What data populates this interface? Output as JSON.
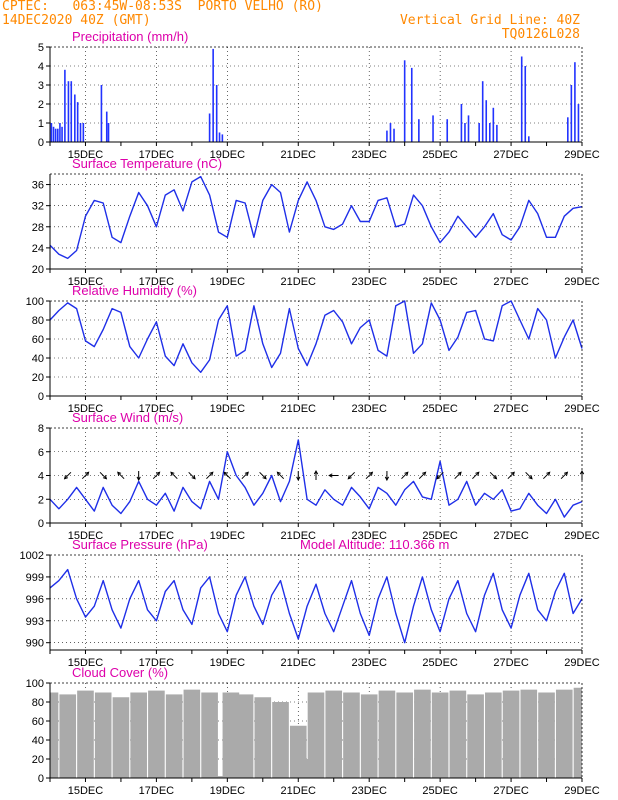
{
  "header": {
    "line1_left": "CPTEC:   063:45W-08:53S  PORTO VELHO (RO)",
    "line2_left": "14DEC2020 40Z (GMT)",
    "line1_right": "Vertical Grid Line: 40Z",
    "line2_right": "TQ0126L028",
    "color": "#ff8800"
  },
  "colors": {
    "title": "#dd00aa",
    "line": "#1f2fe8",
    "bar": "#2233ff",
    "cloud": "#aaaaaa",
    "axis": "#000000",
    "arrow": "#000000"
  },
  "x_labels": [
    "15DEC",
    "17DEC",
    "19DEC",
    "21DEC",
    "23DEC",
    "25DEC",
    "27DEC",
    "29DEC"
  ],
  "chart_data": [
    {
      "id": "precip",
      "type": "bar",
      "title": "Precipitation (mm/h)",
      "ylim": [
        0,
        5
      ],
      "yticks": [
        "0",
        "1",
        "2",
        "3",
        "4",
        "5"
      ],
      "xlim": [
        0,
        15
      ],
      "x_tick_days": [
        1,
        3,
        5,
        7,
        9,
        11,
        13,
        15
      ],
      "x_units": "days since 14DEC2020",
      "series": [
        {
          "x": [
            0.04,
            0.1,
            0.16,
            0.22,
            0.28,
            0.34,
            0.42,
            0.52,
            0.6,
            0.7,
            0.78,
            0.86,
            0.94,
            1.45,
            1.6,
            1.65,
            4.5,
            4.6,
            4.7,
            4.78,
            4.86,
            9.5,
            9.6,
            9.7,
            10.0,
            10.2,
            10.4,
            10.8,
            11.2,
            11.6,
            11.7,
            11.8,
            12.1,
            12.2,
            12.3,
            12.4,
            12.5,
            12.6,
            13.3,
            13.4,
            13.5,
            14.6,
            14.7,
            14.8,
            14.9
          ],
          "values": [
            1.0,
            0.8,
            0.7,
            0.7,
            1.0,
            0.8,
            3.8,
            3.2,
            3.2,
            2.5,
            2.1,
            1.0,
            1.0,
            3.0,
            1.6,
            1.0,
            1.5,
            4.9,
            3.0,
            0.5,
            0.4,
            0.6,
            1.0,
            0.7,
            4.3,
            3.9,
            1.2,
            1.4,
            1.2,
            2.0,
            1.0,
            1.4,
            1.0,
            3.2,
            2.2,
            1.0,
            1.8,
            0.9,
            4.5,
            4.0,
            0.3,
            1.3,
            3.0,
            4.2,
            2.0
          ]
        }
      ]
    },
    {
      "id": "temp",
      "type": "line",
      "title": "Surface Temperature (nC)",
      "ylim": [
        20,
        38
      ],
      "yticks": [
        "20",
        "24",
        "28",
        "32",
        "36"
      ],
      "xlim": [
        0,
        15
      ],
      "x_tick_days": [
        1,
        3,
        5,
        7,
        9,
        11,
        13,
        15
      ],
      "series": [
        {
          "x": [
            0,
            0.25,
            0.5,
            0.75,
            1,
            1.25,
            1.5,
            1.75,
            2,
            2.25,
            2.5,
            2.75,
            3,
            3.25,
            3.5,
            3.75,
            4,
            4.25,
            4.5,
            4.75,
            5,
            5.25,
            5.5,
            5.75,
            6,
            6.25,
            6.5,
            6.75,
            7,
            7.25,
            7.5,
            7.75,
            8,
            8.25,
            8.5,
            8.75,
            9,
            9.25,
            9.5,
            9.75,
            10,
            10.25,
            10.5,
            10.75,
            11,
            11.25,
            11.5,
            11.75,
            12,
            12.25,
            12.5,
            12.75,
            13,
            13.25,
            13.5,
            13.75,
            14,
            14.25,
            14.5,
            14.75,
            15
          ],
          "values": [
            24.5,
            22.8,
            22.0,
            23.5,
            30.0,
            33.0,
            32.5,
            26.0,
            25.0,
            30.0,
            34.5,
            32.0,
            28.0,
            34.0,
            35.0,
            31.0,
            36.5,
            37.5,
            34.0,
            27.0,
            26.0,
            33.0,
            32.5,
            26.0,
            33.0,
            36.0,
            34.5,
            27.0,
            33.0,
            36.5,
            33.0,
            28.0,
            27.5,
            28.5,
            32.0,
            29.0,
            29.0,
            33.0,
            33.5,
            28.0,
            28.5,
            34.0,
            32.0,
            28.0,
            25.0,
            27.0,
            30.0,
            28.0,
            26.0,
            28.0,
            30.5,
            26.5,
            25.5,
            28.0,
            33.0,
            30.5,
            26.0,
            26.0,
            30.0,
            31.5,
            31.8
          ]
        }
      ]
    },
    {
      "id": "rh",
      "type": "line",
      "title": "Relative Humidity (%)",
      "ylim": [
        0,
        100
      ],
      "yticks": [
        "0",
        "20",
        "40",
        "60",
        "80",
        "100"
      ],
      "xlim": [
        0,
        15
      ],
      "x_tick_days": [
        1,
        3,
        5,
        7,
        9,
        11,
        13,
        15
      ],
      "series": [
        {
          "x": [
            0,
            0.25,
            0.5,
            0.75,
            1,
            1.25,
            1.5,
            1.75,
            2,
            2.25,
            2.5,
            2.75,
            3,
            3.25,
            3.5,
            3.75,
            4,
            4.25,
            4.5,
            4.75,
            5,
            5.25,
            5.5,
            5.75,
            6,
            6.25,
            6.5,
            6.75,
            7,
            7.25,
            7.5,
            7.75,
            8,
            8.25,
            8.5,
            8.75,
            9,
            9.25,
            9.5,
            9.75,
            10,
            10.25,
            10.5,
            10.75,
            11,
            11.25,
            11.5,
            11.75,
            12,
            12.25,
            12.5,
            12.75,
            13,
            13.25,
            13.5,
            13.75,
            14,
            14.25,
            14.5,
            14.75,
            15
          ],
          "values": [
            80,
            90,
            98,
            92,
            58,
            52,
            70,
            92,
            88,
            52,
            40,
            60,
            78,
            42,
            32,
            55,
            35,
            25,
            38,
            80,
            95,
            42,
            48,
            95,
            55,
            30,
            45,
            92,
            50,
            32,
            55,
            85,
            90,
            78,
            55,
            72,
            80,
            48,
            42,
            95,
            100,
            45,
            55,
            98,
            80,
            48,
            62,
            88,
            90,
            60,
            58,
            95,
            100,
            80,
            60,
            92,
            80,
            40,
            62,
            80,
            50
          ]
        }
      ]
    },
    {
      "id": "wind",
      "type": "line",
      "title": "Surface Wind (m/s)",
      "ylim": [
        0,
        8
      ],
      "yticks": [
        "0",
        "2",
        "4",
        "6",
        "8"
      ],
      "xlim": [
        0,
        15
      ],
      "x_tick_days": [
        1,
        3,
        5,
        7,
        9,
        11,
        13,
        15
      ],
      "series": [
        {
          "x": [
            0,
            0.25,
            0.5,
            0.75,
            1,
            1.25,
            1.5,
            1.75,
            2,
            2.25,
            2.5,
            2.75,
            3,
            3.25,
            3.5,
            3.75,
            4,
            4.25,
            4.5,
            4.75,
            5,
            5.25,
            5.5,
            5.75,
            6,
            6.25,
            6.5,
            6.75,
            7,
            7.25,
            7.5,
            7.75,
            8,
            8.25,
            8.5,
            8.75,
            9,
            9.25,
            9.5,
            9.75,
            10,
            10.25,
            10.5,
            10.75,
            11,
            11.25,
            11.5,
            11.75,
            12,
            12.25,
            12.5,
            12.75,
            13,
            13.25,
            13.5,
            13.75,
            14,
            14.25,
            14.5,
            14.75,
            15
          ],
          "values": [
            2.0,
            1.2,
            2.0,
            3.0,
            2.0,
            1.0,
            3.0,
            1.5,
            0.8,
            1.8,
            3.5,
            2.0,
            1.5,
            2.5,
            1.0,
            3.0,
            1.8,
            1.2,
            3.5,
            2.0,
            6.0,
            4.0,
            3.0,
            1.5,
            2.5,
            4.0,
            1.8,
            3.5,
            7.0,
            2.0,
            1.5,
            2.8,
            2.0,
            1.5,
            3.0,
            2.2,
            1.2,
            3.0,
            2.5,
            1.5,
            2.8,
            3.5,
            2.2,
            2.0,
            5.2,
            1.5,
            2.0,
            3.5,
            1.5,
            2.5,
            2.0,
            2.8,
            1.0,
            1.2,
            2.5,
            1.5,
            0.8,
            2.0,
            0.5,
            1.5,
            1.8
          ]
        }
      ]
    },
    {
      "id": "pres",
      "type": "line",
      "title": "Surface Pressure (hPa)",
      "annotation": "Model Altitude: 110.366 m",
      "ylim": [
        989,
        1002
      ],
      "yticks": [
        "990",
        "993",
        "996",
        "999",
        "1002"
      ],
      "xlim": [
        0,
        15
      ],
      "x_tick_days": [
        1,
        3,
        5,
        7,
        9,
        11,
        13,
        15
      ],
      "series": [
        {
          "x": [
            0,
            0.25,
            0.5,
            0.75,
            1,
            1.25,
            1.5,
            1.75,
            2,
            2.25,
            2.5,
            2.75,
            3,
            3.25,
            3.5,
            3.75,
            4,
            4.25,
            4.5,
            4.75,
            5,
            5.25,
            5.5,
            5.75,
            6,
            6.25,
            6.5,
            6.75,
            7,
            7.25,
            7.5,
            7.75,
            8,
            8.25,
            8.5,
            8.75,
            9,
            9.25,
            9.5,
            9.75,
            10,
            10.25,
            10.5,
            10.75,
            11,
            11.25,
            11.5,
            11.75,
            12,
            12.25,
            12.5,
            12.75,
            13,
            13.25,
            13.5,
            13.75,
            14,
            14.25,
            14.5,
            14.75,
            15
          ],
          "values": [
            997.5,
            998.5,
            1000.0,
            996.0,
            993.5,
            995.0,
            998.5,
            994.5,
            992.0,
            996.0,
            998.5,
            994.5,
            993.0,
            997.0,
            998.5,
            994.5,
            992.5,
            997.5,
            999.0,
            994.0,
            991.5,
            996.5,
            999.0,
            995.0,
            992.5,
            996.5,
            998.5,
            994.0,
            990.5,
            995.0,
            998.0,
            994.0,
            991.5,
            995.0,
            998.5,
            994.0,
            991.0,
            996.0,
            999.0,
            994.0,
            990.0,
            995.0,
            999.0,
            994.5,
            991.5,
            996.0,
            998.5,
            994.0,
            991.5,
            996.5,
            999.5,
            994.5,
            992.0,
            996.5,
            999.5,
            994.5,
            993.0,
            997.0,
            999.5,
            994.0,
            996.0
          ]
        }
      ]
    },
    {
      "id": "cloud",
      "type": "area",
      "title": "Cloud Cover (%)",
      "ylim": [
        0,
        100
      ],
      "yticks": [
        "0",
        "20",
        "40",
        "60",
        "80",
        "100"
      ],
      "xlim": [
        0,
        15
      ],
      "x_tick_days": [
        1,
        3,
        5,
        7,
        9,
        11,
        13,
        15
      ],
      "series": [
        {
          "x": [
            0,
            0.5,
            1,
            1.5,
            2,
            2.5,
            3,
            3.5,
            4,
            4.5,
            4.9,
            5.1,
            5.5,
            6,
            6.5,
            7,
            7.2,
            7.5,
            8,
            8.5,
            9,
            9.5,
            10,
            10.5,
            11,
            11.5,
            12,
            12.5,
            13,
            13.5,
            14,
            14.5,
            15
          ],
          "values": [
            90,
            88,
            92,
            90,
            85,
            90,
            92,
            88,
            93,
            90,
            2,
            90,
            88,
            85,
            80,
            55,
            20,
            90,
            92,
            90,
            88,
            92,
            90,
            93,
            90,
            92,
            88,
            90,
            92,
            93,
            90,
            93,
            95
          ]
        }
      ]
    }
  ],
  "wind_arrows": {
    "y_value": 4.0,
    "x": [
      0.5,
      1.0,
      1.5,
      2.0,
      2.5,
      3.0,
      3.5,
      4.0,
      4.5,
      5.0,
      5.5,
      6.0,
      6.5,
      7.0,
      7.5,
      8.0,
      8.5,
      9.0,
      9.5,
      10.0,
      10.5,
      11.0,
      11.5,
      12.0,
      12.5,
      13.0,
      13.5,
      14.0,
      14.5,
      15.0
    ],
    "dir_deg": [
      225,
      45,
      315,
      135,
      270,
      45,
      135,
      315,
      45,
      135,
      45,
      315,
      135,
      270,
      90,
      180,
      225,
      45,
      270,
      45,
      45,
      225,
      45,
      45,
      315,
      45,
      315,
      45,
      45,
      90
    ]
  }
}
